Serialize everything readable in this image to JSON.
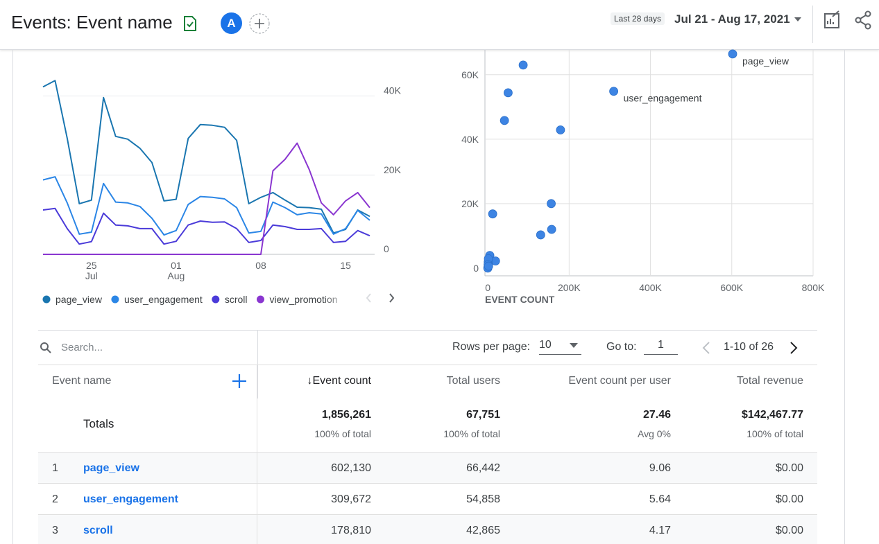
{
  "header": {
    "title": "Events: Event name",
    "avatar": "A",
    "date_preset": "Last 28 days",
    "date_range": "Jul 21 - Aug 17, 2021"
  },
  "chart_data": [
    {
      "type": "line",
      "categories": [
        null,
        null,
        null,
        null,
        "25\nJul",
        null,
        null,
        null,
        null,
        null,
        null,
        "01\nAug",
        null,
        null,
        null,
        null,
        null,
        null,
        "08",
        null,
        null,
        null,
        null,
        null,
        null,
        "15",
        null,
        null
      ],
      "series": [
        {
          "name": "page_view",
          "color": "#1a76b0",
          "values": [
            42300,
            43900,
            29300,
            12800,
            13700,
            39600,
            29800,
            29100,
            26800,
            23200,
            13500,
            13900,
            29300,
            32800,
            32600,
            32100,
            28800,
            12800,
            14400,
            15600,
            13700,
            11900,
            11800,
            11400,
            5400,
            6300,
            11200,
            9600
          ]
        },
        {
          "name": "user_engagement",
          "color": "#2b86e6",
          "values": [
            18800,
            19600,
            13000,
            5100,
            5600,
            17900,
            13200,
            13000,
            12100,
            9100,
            4900,
            6000,
            12600,
            14600,
            14400,
            14000,
            11800,
            5400,
            5800,
            13200,
            11800,
            10000,
            10500,
            10200,
            5100,
            6500,
            11100,
            8600
          ]
        },
        {
          "name": "scroll",
          "color": "#4b3bd9",
          "values": [
            11200,
            11600,
            6500,
            2600,
            3200,
            10400,
            7400,
            7200,
            6500,
            6500,
            2600,
            3300,
            7400,
            8400,
            8100,
            8200,
            6500,
            3000,
            3500,
            7400,
            7000,
            6300,
            6300,
            6500,
            3000,
            3300,
            6000,
            4700
          ]
        },
        {
          "name": "view_promotion",
          "color": "#8a36d0",
          "values": [
            0,
            0,
            0,
            0,
            0,
            0,
            0,
            0,
            0,
            0,
            0,
            0,
            0,
            0,
            0,
            0,
            0,
            0,
            0,
            21100,
            24000,
            28100,
            21400,
            13000,
            10000,
            13500,
            15600,
            11800
          ]
        }
      ],
      "ylim": [
        0,
        45000
      ],
      "yticks": [
        {
          "value": 0,
          "label": "0"
        },
        {
          "value": 20000,
          "label": "20K"
        },
        {
          "value": 40000,
          "label": "40K"
        }
      ],
      "grid": true
    },
    {
      "type": "scatter",
      "xlabel": "EVENT COUNT",
      "color": "#3d84e3",
      "x": [
        602130,
        309672,
        178810,
        87000,
        50000,
        41000,
        12000,
        156000,
        157000,
        130000,
        5000,
        19000,
        1000,
        1500,
        800,
        300,
        100,
        2000
      ],
      "values": [
        66442,
        54858,
        42865,
        63000,
        54400,
        45800,
        16800,
        20000,
        12000,
        10300,
        3900,
        2200,
        1900,
        2900,
        1100,
        200,
        0,
        600
      ],
      "point_labels": [
        "page_view",
        "user_engagement",
        null,
        null,
        null,
        null,
        null,
        null,
        null,
        null,
        null,
        null,
        null,
        null,
        null,
        null,
        null,
        null
      ],
      "xlim": [
        -7000,
        800000
      ],
      "xticks": [
        {
          "value": 0,
          "label": "0"
        },
        {
          "value": 200000,
          "label": "200K"
        },
        {
          "value": 400000,
          "label": "400K"
        },
        {
          "value": 600000,
          "label": "600K"
        },
        {
          "value": 800000,
          "label": "800K"
        }
      ],
      "ylim": [
        -2400,
        67700
      ],
      "yticks": [
        {
          "value": 0,
          "label": "0"
        },
        {
          "value": 20000,
          "label": "20K"
        },
        {
          "value": 40000,
          "label": "40K"
        },
        {
          "value": 60000,
          "label": "60K"
        }
      ],
      "grid": true
    }
  ],
  "table": {
    "search_placeholder": "Search...",
    "rows_per_page_label": "Rows per page:",
    "rows_per_page": "10",
    "goto_label": "Go to:",
    "goto_value": "1",
    "pagination": "1-10 of 26",
    "columns": [
      "Event name",
      "Event count",
      "Total users",
      "Event count per user",
      "Total revenue"
    ],
    "totals": {
      "label": "Totals",
      "cells": [
        [
          "1,856,261",
          "100% of total"
        ],
        [
          "67,751",
          "100% of total"
        ],
        [
          "27.46",
          "Avg 0%"
        ],
        [
          "$142,467.77",
          "100% of total"
        ]
      ]
    },
    "rows": [
      [
        "1",
        "page_view",
        "602,130",
        "66,442",
        "9.06",
        "$0.00"
      ],
      [
        "2",
        "user_engagement",
        "309,672",
        "54,858",
        "5.64",
        "$0.00"
      ],
      [
        "3",
        "scroll",
        "178,810",
        "42,865",
        "4.17",
        "$0.00"
      ]
    ]
  }
}
